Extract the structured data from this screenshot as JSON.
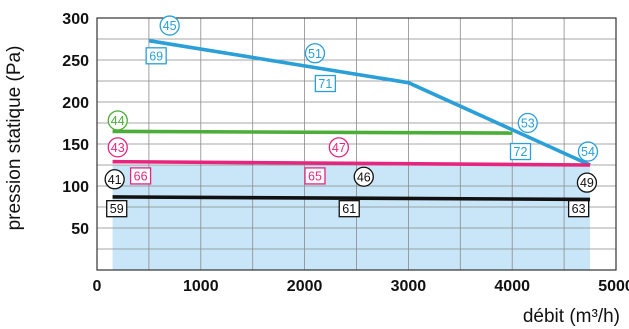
{
  "chart_data": {
    "type": "line",
    "xlabel": "débit (m³/h)",
    "ylabel": "pression statique (Pa)",
    "xlim": [
      0,
      5000
    ],
    "ylim": [
      0,
      300
    ],
    "x_ticks": [
      0,
      1000,
      2000,
      3000,
      4000,
      5000
    ],
    "y_ticks": [
      50,
      100,
      150,
      200,
      250,
      300
    ],
    "x_tick_labels": [
      "0",
      "1000",
      "2000",
      "3000",
      "4000",
      "5000"
    ],
    "y_tick_labels": [
      "50",
      "100",
      "150",
      "200",
      "250",
      "300"
    ],
    "grid": true,
    "shaded_region": {
      "x": [
        150,
        4750
      ],
      "y_top": 125,
      "color": "#c8e6f8"
    },
    "series": [
      {
        "color": "#2a9fd8",
        "points": [
          [
            500,
            273
          ],
          [
            3000,
            223
          ],
          [
            4750,
            125
          ]
        ]
      },
      {
        "color": "#4cae38",
        "points": [
          [
            150,
            165
          ],
          [
            4000,
            163
          ]
        ]
      },
      {
        "color": "#e6267e",
        "points": [
          [
            150,
            129
          ],
          [
            4750,
            125
          ]
        ]
      },
      {
        "color": "#111111",
        "points": [
          [
            150,
            87
          ],
          [
            4750,
            84
          ]
        ]
      }
    ],
    "annotations": [
      {
        "text": "45",
        "shape": "circle",
        "color": "#2a9fd8",
        "x": 700,
        "y": 291
      },
      {
        "text": "69",
        "shape": "box",
        "color": "#2a9fd8",
        "x": 570,
        "y": 255
      },
      {
        "text": "51",
        "shape": "circle",
        "color": "#2a9fd8",
        "x": 2100,
        "y": 258
      },
      {
        "text": "71",
        "shape": "box",
        "color": "#2a9fd8",
        "x": 2200,
        "y": 222
      },
      {
        "text": "53",
        "shape": "circle",
        "color": "#2a9fd8",
        "x": 4150,
        "y": 175
      },
      {
        "text": "72",
        "shape": "box",
        "color": "#2a9fd8",
        "x": 4080,
        "y": 141
      },
      {
        "text": "54",
        "shape": "circle",
        "color": "#2a9fd8",
        "x": 4730,
        "y": 141
      },
      {
        "text": "44",
        "shape": "circle",
        "color": "#4cae38",
        "x": 200,
        "y": 178
      },
      {
        "text": "43",
        "shape": "circle",
        "color": "#e6267e",
        "x": 200,
        "y": 146
      },
      {
        "text": "66",
        "shape": "box",
        "color": "#e6267e",
        "x": 420,
        "y": 112
      },
      {
        "text": "47",
        "shape": "circle",
        "color": "#e6267e",
        "x": 2330,
        "y": 146
      },
      {
        "text": "65",
        "shape": "box",
        "color": "#e6267e",
        "x": 2100,
        "y": 112
      },
      {
        "text": "41",
        "shape": "circle",
        "color": "#111111",
        "x": 170,
        "y": 108
      },
      {
        "text": "59",
        "shape": "box",
        "color": "#111111",
        "x": 190,
        "y": 73
      },
      {
        "text": "46",
        "shape": "circle",
        "color": "#111111",
        "x": 2570,
        "y": 111
      },
      {
        "text": "61",
        "shape": "box",
        "color": "#111111",
        "x": 2430,
        "y": 73
      },
      {
        "text": "49",
        "shape": "circle",
        "color": "#111111",
        "x": 4720,
        "y": 104
      },
      {
        "text": "63",
        "shape": "box",
        "color": "#111111",
        "x": 4640,
        "y": 73
      }
    ]
  }
}
